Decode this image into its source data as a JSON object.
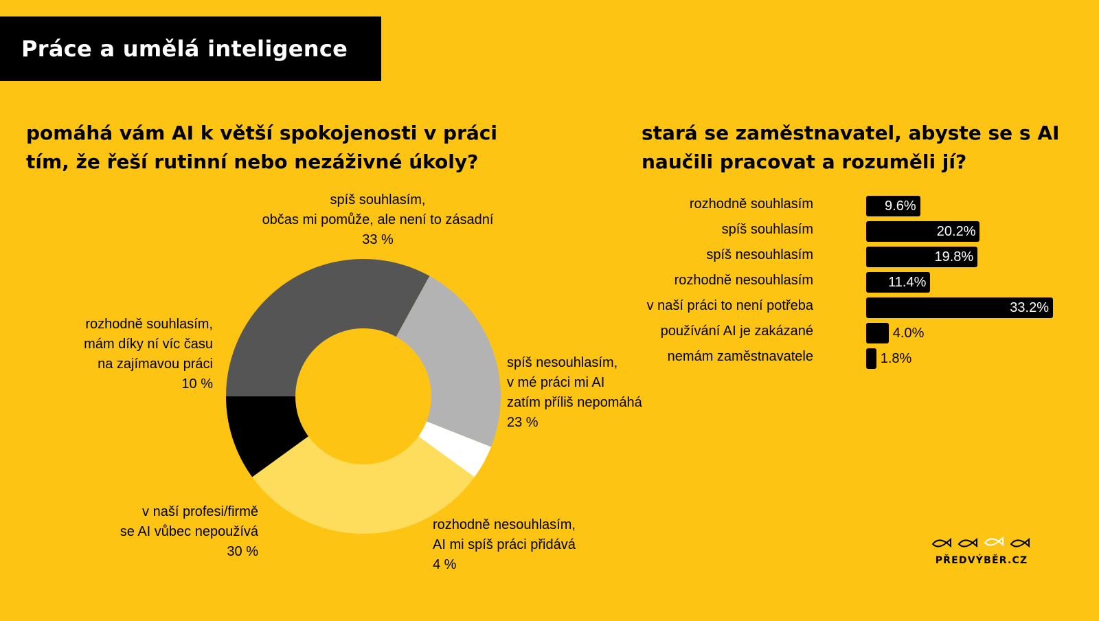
{
  "header": {
    "title": "Práce a umělá inteligence"
  },
  "colors": {
    "background": "#FDC413",
    "spis_souhlasim": "#555555",
    "rozhodne_souhlasim": "#000000",
    "spis_nesouhlasim": "#B3B3B3",
    "rozhodne_nesouhlasim": "#FFFFFF",
    "nepouziva": "#FFDD5C",
    "bar": "#000000"
  },
  "chart_data": [
    {
      "type": "pie",
      "title": "pomáhá vám AI k větší spokojenosti v práci tím, že řeší rutinní nebo nezáživné úkoly?",
      "title_lines": [
        "pomáhá vám AI k větší spokojenosti v práci",
        "tím, že řeší rutinní nebo nezáživné úkoly?"
      ],
      "donut": true,
      "slices": [
        {
          "key": "rozhodne_souhlasim",
          "lines": [
            "rozhodně souhlasím,",
            "mám díky ní víc času",
            "na zajímavou práci"
          ],
          "value": 10,
          "value_label": "10 %"
        },
        {
          "key": "spis_souhlasim",
          "lines": [
            "spíš souhlasím,",
            "občas mi pomůže, ale není to zásadní"
          ],
          "value": 33,
          "value_label": "33 %"
        },
        {
          "key": "spis_nesouhlasim",
          "lines": [
            "spíš nesouhlasím,",
            "v mé práci mi AI",
            "zatím příliš nepomáhá"
          ],
          "value": 23,
          "value_label": "23 %"
        },
        {
          "key": "rozhodne_nesouhlasim",
          "lines": [
            "rozhodně nesouhlasím,",
            "AI mi spíš práci přidává"
          ],
          "value": 4,
          "value_label": "4 %"
        },
        {
          "key": "nepouziva",
          "lines": [
            "v naší profesi/firmě",
            "se AI vůbec nepoužívá"
          ],
          "value": 30,
          "value_label": "30 %"
        }
      ]
    },
    {
      "type": "bar",
      "orientation": "horizontal",
      "title": "stará se zaměstnavatel, abyste se s AI naučili pracovat a rozuměli jí?",
      "title_lines": [
        "stará se zaměstnavatel, abyste se s AI",
        "naučili pracovat a rozuměli jí?"
      ],
      "categories": [
        "rozhodně souhlasím",
        "spíš souhlasím",
        "spíš nesouhlasím",
        "rozhodně nesouhlasím",
        "v naší práci to není potřeba",
        "používání AI je zakázané",
        "nemám zaměstnavatele"
      ],
      "values": [
        9.6,
        20.2,
        19.8,
        11.4,
        33.2,
        4.0,
        1.8
      ],
      "value_labels": [
        "9.6%",
        "20.2%",
        "19.8%",
        "11.4%",
        "33.2%",
        "4.0%",
        "1.8%"
      ]
    }
  ],
  "logo": {
    "text": "PŘEDVÝBĚR.CZ",
    "icon": "fish-icon"
  }
}
